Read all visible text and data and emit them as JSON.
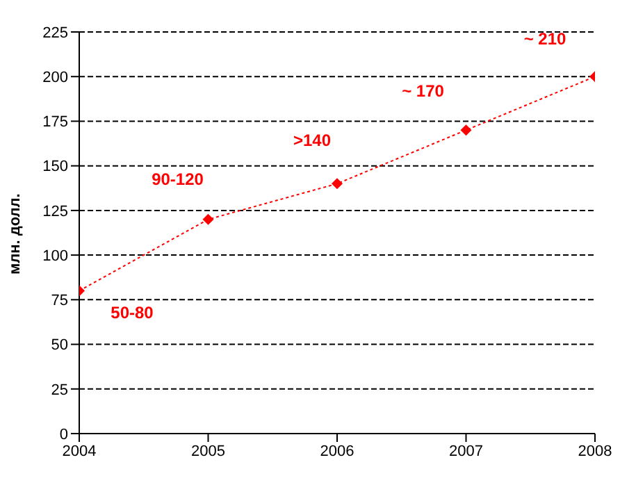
{
  "chart_data": {
    "type": "line",
    "ylabel": "млн. долл.",
    "x": [
      2004,
      2005,
      2006,
      2007,
      2008
    ],
    "series": [
      {
        "color": "#ff0000",
        "values": [
          80,
          120,
          140,
          170,
          200
        ]
      }
    ],
    "xlim": [
      2004,
      2008
    ],
    "xticks": [
      2004,
      2005,
      2006,
      2007,
      2008
    ],
    "ylim": [
      0,
      225
    ],
    "yticks": [
      0,
      25,
      50,
      75,
      100,
      125,
      150,
      175,
      200,
      225
    ],
    "grid": "y",
    "marker": "diamond",
    "line_style": "dotted",
    "legend": false,
    "annotations": [
      "50-80",
      "90-120",
      ">140",
      "~ 170",
      "~ 210"
    ]
  }
}
